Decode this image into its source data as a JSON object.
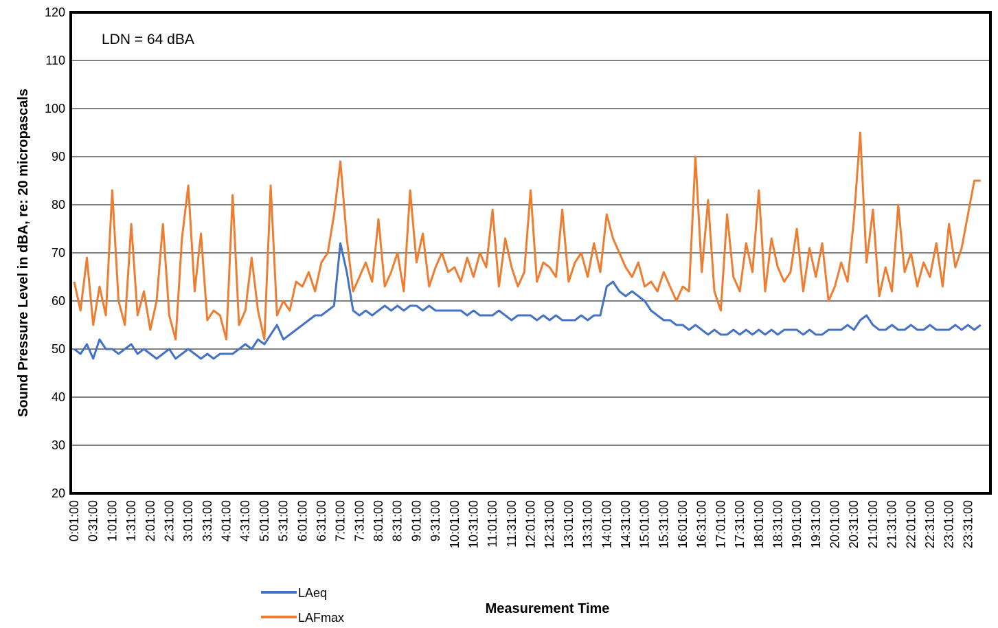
{
  "chart_data": {
    "type": "line",
    "annotation": "LDN = 64 dBA",
    "x_label": "Measurement Time",
    "y_label": "Sound Pressure Level in dBA, re: 20 micropascals",
    "categories": [
      "0:01:00",
      null,
      null,
      "0:31:00",
      null,
      null,
      "1:01:00",
      null,
      null,
      "1:31:00",
      null,
      null,
      "2:01:00",
      null,
      null,
      "2:31:00",
      null,
      null,
      "3:01:00",
      null,
      null,
      "3:31:00",
      null,
      null,
      "4:01:00",
      null,
      null,
      "4:31:00",
      null,
      null,
      "5:01:00",
      null,
      null,
      "5:31:00",
      null,
      null,
      "6:01:00",
      null,
      null,
      "6:31:00",
      null,
      null,
      "7:01:00",
      null,
      null,
      "7:31:00",
      null,
      null,
      "8:01:00",
      null,
      null,
      "8:31:00",
      null,
      null,
      "9:01:00",
      null,
      null,
      "9:31:00",
      null,
      null,
      "10:01:00",
      null,
      null,
      "10:31:00",
      null,
      null,
      "11:01:00",
      null,
      null,
      "11:31:00",
      null,
      null,
      "12:01:00",
      null,
      null,
      "12:31:00",
      null,
      null,
      "13:01:00",
      null,
      null,
      "13:31:00",
      null,
      null,
      "14:01:00",
      null,
      null,
      "14:31:00",
      null,
      null,
      "15:01:00",
      null,
      null,
      "15:31:00",
      null,
      null,
      "16:01:00",
      null,
      null,
      "16:31:00",
      null,
      null,
      "17:01:00",
      null,
      null,
      "17:31:00",
      null,
      null,
      "18:01:00",
      null,
      null,
      "18:31:00",
      null,
      null,
      "19:01:00",
      null,
      null,
      "19:31:00",
      null,
      null,
      "20:01:00",
      null,
      null,
      "20:31:00",
      null,
      null,
      "21:01:00",
      null,
      null,
      "21:31:00",
      null,
      null,
      "22:01:00",
      null,
      null,
      "22:31:00",
      null,
      null,
      "23:01:00",
      null,
      null,
      "23:31:00",
      null,
      null
    ],
    "series": [
      {
        "name": "LAeq",
        "color": "#4472c4",
        "values": [
          50,
          49,
          51,
          48,
          52,
          50,
          50,
          49,
          50,
          51,
          49,
          50,
          49,
          48,
          49,
          50,
          48,
          49,
          50,
          49,
          48,
          49,
          48,
          49,
          49,
          49,
          50,
          51,
          50,
          52,
          51,
          53,
          55,
          52,
          53,
          54,
          55,
          56,
          57,
          57,
          58,
          59,
          72,
          66,
          58,
          57,
          58,
          57,
          58,
          59,
          58,
          59,
          58,
          59,
          59,
          58,
          59,
          58,
          58,
          58,
          58,
          58,
          57,
          58,
          57,
          57,
          57,
          58,
          57,
          56,
          57,
          57,
          57,
          56,
          57,
          56,
          57,
          56,
          56,
          56,
          57,
          56,
          57,
          57,
          63,
          64,
          62,
          61,
          62,
          61,
          60,
          58,
          57,
          56,
          56,
          55,
          55,
          54,
          55,
          54,
          53,
          54,
          53,
          53,
          54,
          53,
          54,
          53,
          54,
          53,
          54,
          53,
          54,
          54,
          54,
          53,
          54,
          53,
          53,
          54,
          54,
          54,
          55,
          54,
          56,
          57,
          55,
          54,
          54,
          55,
          54,
          54,
          55,
          54,
          54,
          55,
          54,
          54,
          54,
          55,
          54,
          55,
          54,
          55
        ]
      },
      {
        "name": "LAFmax",
        "color": "#ed7d31",
        "values": [
          64,
          58,
          69,
          55,
          63,
          57,
          83,
          60,
          55,
          76,
          57,
          62,
          54,
          60,
          76,
          57,
          52,
          73,
          84,
          62,
          74,
          56,
          58,
          57,
          52,
          82,
          55,
          58,
          69,
          58,
          52,
          84,
          57,
          60,
          58,
          64,
          63,
          66,
          62,
          68,
          70,
          78,
          89,
          73,
          62,
          65,
          68,
          64,
          77,
          63,
          66,
          70,
          62,
          83,
          68,
          74,
          63,
          67,
          70,
          66,
          67,
          64,
          69,
          65,
          70,
          67,
          79,
          63,
          73,
          67,
          63,
          66,
          83,
          64,
          68,
          67,
          65,
          79,
          64,
          68,
          70,
          65,
          72,
          66,
          78,
          73,
          70,
          67,
          65,
          68,
          63,
          64,
          62,
          66,
          63,
          60,
          63,
          62,
          90,
          66,
          81,
          62,
          58,
          78,
          65,
          62,
          72,
          66,
          83,
          62,
          73,
          67,
          64,
          66,
          75,
          62,
          71,
          65,
          72,
          60,
          63,
          68,
          64,
          77,
          95,
          68,
          79,
          61,
          67,
          62,
          80,
          66,
          70,
          63,
          68,
          65,
          72,
          63,
          76,
          67,
          71,
          78,
          85,
          85
        ]
      }
    ],
    "ylim": [
      20,
      120
    ],
    "yticks": [
      20,
      30,
      40,
      50,
      60,
      70,
      80,
      90,
      100,
      110,
      120
    ],
    "grid": true
  }
}
